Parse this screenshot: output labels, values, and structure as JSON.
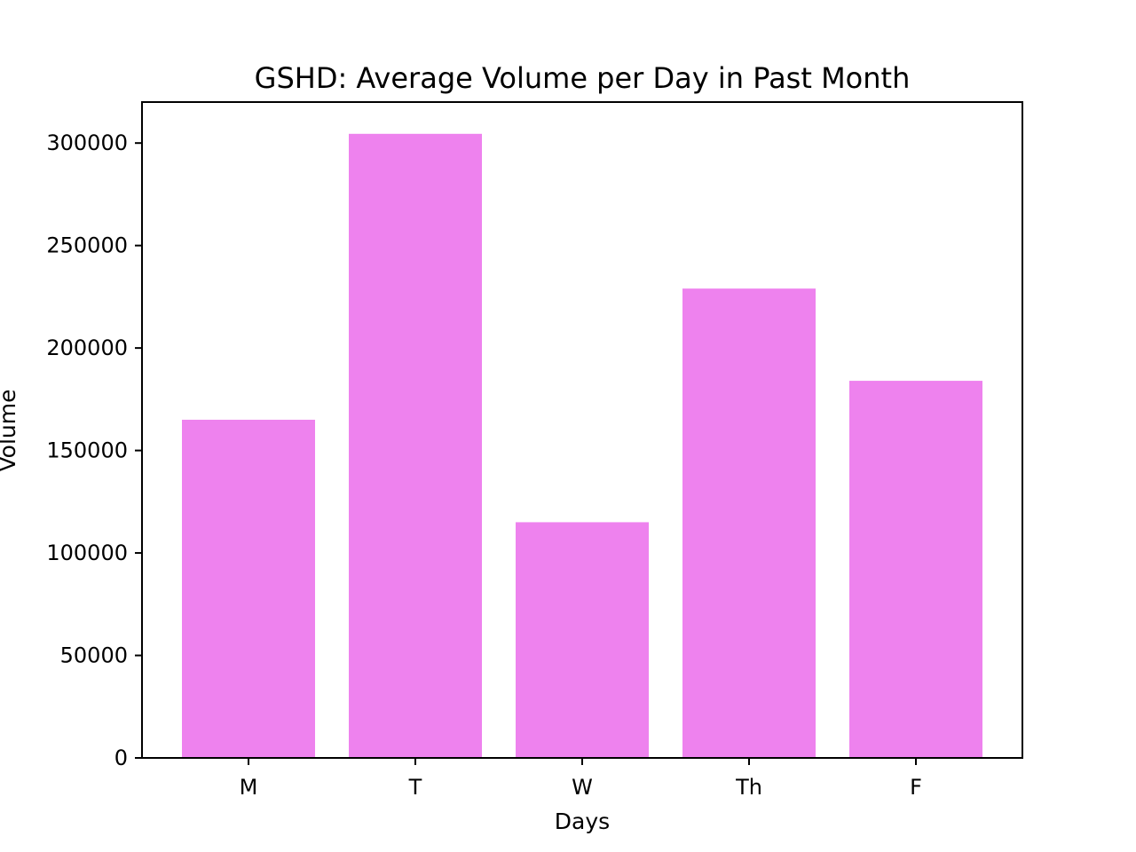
{
  "chart_data": {
    "type": "bar",
    "title": "GSHD: Average Volume per Day in Past Month",
    "xlabel": "Days",
    "ylabel": "Volume",
    "categories": [
      "M",
      "T",
      "W",
      "Th",
      "F"
    ],
    "values": [
      165000,
      304500,
      115000,
      229000,
      184000
    ],
    "ylim": [
      0,
      320000
    ],
    "yticks": [
      0,
      50000,
      100000,
      150000,
      200000,
      250000,
      300000
    ],
    "ytick_labels": [
      "0",
      "50000",
      "100000",
      "150000",
      "200000",
      "250000",
      "300000"
    ],
    "grid": false,
    "legend": "none",
    "colors": {
      "bar": "#ee82ee",
      "axis": "#000000",
      "text": "#000000",
      "background": "#ffffff"
    }
  }
}
